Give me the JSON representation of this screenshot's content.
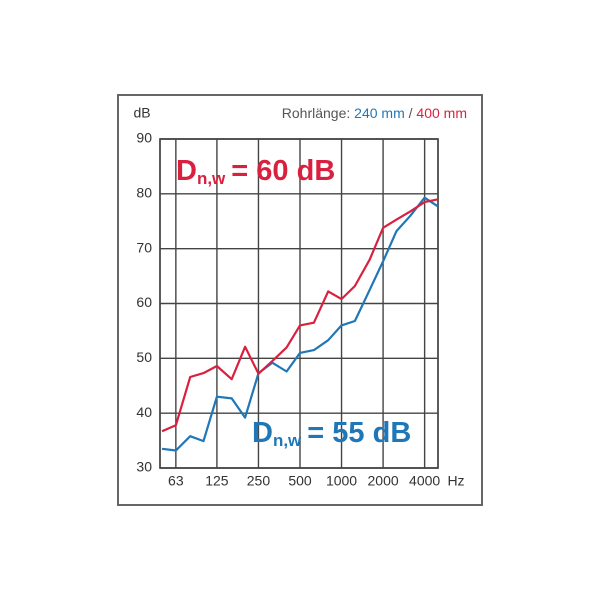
{
  "chart_data": {
    "type": "line",
    "y_label": "dB",
    "x_label": "Hz",
    "legend_title": "Rohrlänge:",
    "legend_separator": "/",
    "x": [
      50,
      63,
      80,
      100,
      125,
      160,
      200,
      250,
      315,
      400,
      500,
      630,
      800,
      1000,
      1250,
      1600,
      2000,
      2500,
      3150,
      4000,
      5000
    ],
    "xlim": [
      50,
      5000
    ],
    "xscale": "log",
    "xticks": [
      63,
      125,
      250,
      500,
      1000,
      2000,
      4000
    ],
    "ylim": [
      30,
      90
    ],
    "yticks": [
      30,
      40,
      50,
      60,
      70,
      80,
      90
    ],
    "grid": true,
    "series": [
      {
        "name": "240 mm",
        "color": "#1f77b8",
        "values": [
          33.5,
          33.2,
          35.8,
          34.9,
          43,
          42.7,
          39.2,
          47.3,
          49.2,
          47.6,
          51,
          51.5,
          53.3,
          56,
          56.8,
          62.5,
          67.7,
          73.2,
          76,
          79.3,
          77.7
        ]
      },
      {
        "name": "400 mm",
        "color": "#d9213f",
        "values": [
          36.7,
          37.8,
          46.6,
          47.3,
          48.6,
          46.2,
          52.1,
          47.2,
          49.5,
          52,
          56,
          56.5,
          62.2,
          60.8,
          63.2,
          68,
          73.8,
          75.3,
          76.8,
          78.5,
          79
        ]
      }
    ],
    "annotations": [
      {
        "symbol": "D",
        "subscript": "n,w",
        "text": "= 60 dB",
        "color": "#d9213f"
      },
      {
        "symbol": "D",
        "subscript": "n,w",
        "text": "= 55 dB",
        "color": "#1f77b8"
      }
    ]
  }
}
